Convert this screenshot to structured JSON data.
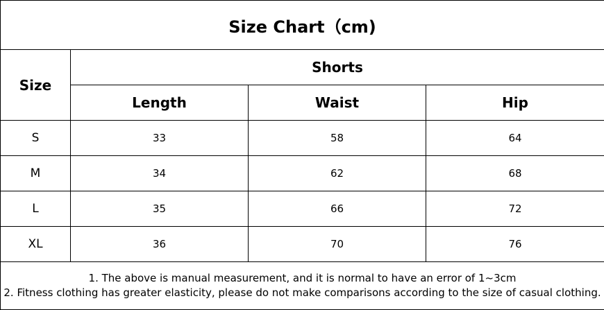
{
  "title": "Size Chart（cm)",
  "size_header": "Size",
  "group_header": "Shorts",
  "columns": [
    "Length",
    "Waist",
    "Hip"
  ],
  "rows": [
    {
      "size": "S",
      "length": "33",
      "waist": "58",
      "hip": "64"
    },
    {
      "size": "M",
      "length": "34",
      "waist": "62",
      "hip": "68"
    },
    {
      "size": "L",
      "length": "35",
      "waist": "66",
      "hip": "72"
    },
    {
      "size": "XL",
      "length": "36",
      "waist": "70",
      "hip": "76"
    }
  ],
  "notes": [
    "1. The above is manual measurement, and it is normal to have an error of 1~3cm",
    "2. Fitness clothing has greater elasticity, please do not make comparisons according to the size of casual clothing."
  ]
}
